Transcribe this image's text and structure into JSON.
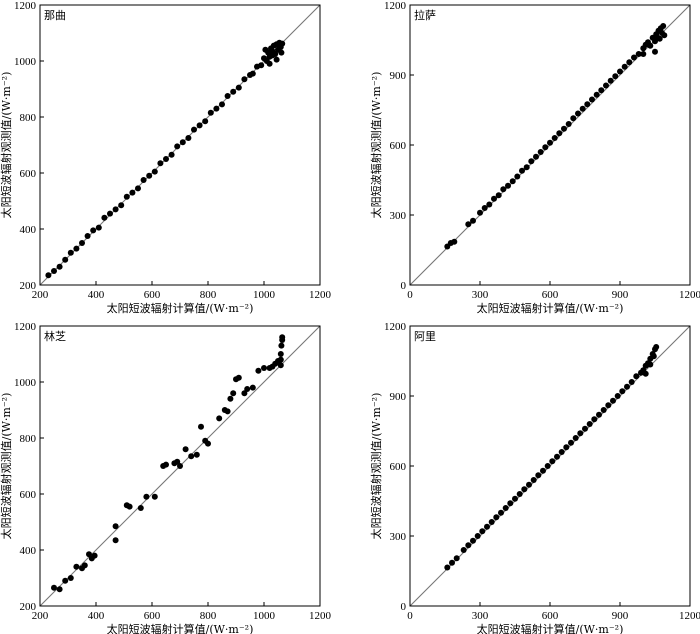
{
  "chart_data": [
    {
      "type": "scatter",
      "title": "那曲",
      "xlabel": "太阳短波辐射计算值/(W·m⁻²)",
      "ylabel": "太阳短波辐射观测值/(W·m⁻²)",
      "xlim": [
        200,
        1200
      ],
      "ylim": [
        200,
        1200
      ],
      "xticks": [
        200,
        400,
        600,
        800,
        1000,
        1200
      ],
      "yticks": [
        200,
        400,
        600,
        800,
        1000,
        1200
      ],
      "reference_line": "1:1",
      "series": [
        {
          "points": [
            [
              230,
              235
            ],
            [
              250,
              250
            ],
            [
              270,
              265
            ],
            [
              290,
              290
            ],
            [
              310,
              315
            ],
            [
              330,
              330
            ],
            [
              350,
              350
            ],
            [
              370,
              375
            ],
            [
              390,
              395
            ],
            [
              410,
              405
            ],
            [
              430,
              440
            ],
            [
              450,
              455
            ],
            [
              470,
              470
            ],
            [
              490,
              485
            ],
            [
              510,
              515
            ],
            [
              530,
              530
            ],
            [
              550,
              545
            ],
            [
              570,
              575
            ],
            [
              590,
              590
            ],
            [
              610,
              605
            ],
            [
              630,
              635
            ],
            [
              650,
              650
            ],
            [
              670,
              665
            ],
            [
              690,
              695
            ],
            [
              710,
              710
            ],
            [
              730,
              725
            ],
            [
              750,
              755
            ],
            [
              770,
              770
            ],
            [
              790,
              785
            ],
            [
              810,
              815
            ],
            [
              830,
              830
            ],
            [
              850,
              845
            ],
            [
              870,
              875
            ],
            [
              890,
              890
            ],
            [
              910,
              905
            ],
            [
              930,
              935
            ],
            [
              950,
              950
            ],
            [
              960,
              955
            ],
            [
              975,
              980
            ],
            [
              990,
              985
            ],
            [
              1000,
              1010
            ],
            [
              1010,
              1000
            ],
            [
              1015,
              1030
            ],
            [
              1020,
              1015
            ],
            [
              1025,
              1045
            ],
            [
              1030,
              1035
            ],
            [
              1035,
              1055
            ],
            [
              1040,
              1025
            ],
            [
              1045,
              1060
            ],
            [
              1050,
              1040
            ],
            [
              1055,
              1065
            ],
            [
              1060,
              1050
            ],
            [
              1062,
              1030
            ],
            [
              1065,
              1062
            ],
            [
              1045,
              1005
            ],
            [
              1030,
              1020
            ],
            [
              1020,
              990
            ],
            [
              1005,
              1040
            ]
          ]
        }
      ]
    },
    {
      "type": "scatter",
      "title": "拉萨",
      "xlabel": "太阳短波辐射计算值/(W·m⁻²)",
      "ylabel": "太阳短波辐射观测值/(W·m⁻²)",
      "xlim": [
        0,
        1200
      ],
      "ylim": [
        0,
        1200
      ],
      "xticks": [
        0,
        300,
        600,
        900,
        1200
      ],
      "yticks": [
        0,
        300,
        600,
        900,
        1200
      ],
      "reference_line": "1:1",
      "series": [
        {
          "points": [
            [
              160,
              165
            ],
            [
              175,
              180
            ],
            [
              190,
              185
            ],
            [
              250,
              260
            ],
            [
              270,
              275
            ],
            [
              300,
              310
            ],
            [
              320,
              330
            ],
            [
              340,
              345
            ],
            [
              360,
              370
            ],
            [
              380,
              385
            ],
            [
              400,
              410
            ],
            [
              420,
              425
            ],
            [
              440,
              445
            ],
            [
              460,
              465
            ],
            [
              480,
              490
            ],
            [
              500,
              505
            ],
            [
              520,
              530
            ],
            [
              540,
              550
            ],
            [
              560,
              570
            ],
            [
              580,
              590
            ],
            [
              600,
              610
            ],
            [
              620,
              630
            ],
            [
              640,
              650
            ],
            [
              660,
              670
            ],
            [
              680,
              690
            ],
            [
              700,
              715
            ],
            [
              720,
              735
            ],
            [
              740,
              755
            ],
            [
              760,
              775
            ],
            [
              780,
              795
            ],
            [
              800,
              815
            ],
            [
              820,
              835
            ],
            [
              840,
              855
            ],
            [
              860,
              875
            ],
            [
              880,
              895
            ],
            [
              900,
              915
            ],
            [
              920,
              935
            ],
            [
              940,
              955
            ],
            [
              960,
              975
            ],
            [
              980,
              990
            ],
            [
              1000,
              1015
            ],
            [
              1010,
              1030
            ],
            [
              1020,
              1040
            ],
            [
              1030,
              1025
            ],
            [
              1040,
              1060
            ],
            [
              1050,
              1045
            ],
            [
              1055,
              1075
            ],
            [
              1060,
              1060
            ],
            [
              1065,
              1090
            ],
            [
              1070,
              1055
            ],
            [
              1075,
              1100
            ],
            [
              1080,
              1080
            ],
            [
              1085,
              1110
            ],
            [
              1090,
              1070
            ],
            [
              1050,
              1000
            ],
            [
              1000,
              990
            ]
          ]
        }
      ]
    },
    {
      "type": "scatter",
      "title": "林芝",
      "xlabel": "太阳短波辐射计算值/(W·m⁻²)",
      "ylabel": "太阳短波辐射观测值/(W·m⁻²)",
      "xlim": [
        200,
        1200
      ],
      "ylim": [
        200,
        1200
      ],
      "xticks": [
        200,
        400,
        600,
        800,
        1000,
        1200
      ],
      "yticks": [
        200,
        400,
        600,
        800,
        1000,
        1200
      ],
      "reference_line": "1:1",
      "series": [
        {
          "points": [
            [
              250,
              265
            ],
            [
              270,
              260
            ],
            [
              290,
              290
            ],
            [
              310,
              300
            ],
            [
              330,
              340
            ],
            [
              350,
              335
            ],
            [
              360,
              345
            ],
            [
              375,
              385
            ],
            [
              385,
              370
            ],
            [
              395,
              380
            ],
            [
              470,
              485
            ],
            [
              470,
              435
            ],
            [
              510,
              560
            ],
            [
              520,
              555
            ],
            [
              560,
              550
            ],
            [
              580,
              590
            ],
            [
              610,
              590
            ],
            [
              640,
              700
            ],
            [
              650,
              705
            ],
            [
              680,
              710
            ],
            [
              690,
              715
            ],
            [
              700,
              700
            ],
            [
              720,
              760
            ],
            [
              740,
              735
            ],
            [
              760,
              740
            ],
            [
              775,
              840
            ],
            [
              790,
              790
            ],
            [
              800,
              780
            ],
            [
              840,
              870
            ],
            [
              860,
              900
            ],
            [
              870,
              895
            ],
            [
              880,
              940
            ],
            [
              890,
              960
            ],
            [
              900,
              1010
            ],
            [
              910,
              1015
            ],
            [
              930,
              960
            ],
            [
              940,
              975
            ],
            [
              960,
              980
            ],
            [
              980,
              1040
            ],
            [
              1000,
              1050
            ],
            [
              1020,
              1050
            ],
            [
              1030,
              1055
            ],
            [
              1040,
              1065
            ],
            [
              1050,
              1075
            ],
            [
              1060,
              1100
            ],
            [
              1060,
              1080
            ],
            [
              1060,
              1060
            ],
            [
              1062,
              1130
            ],
            [
              1065,
              1150
            ],
            [
              1065,
              1160
            ]
          ]
        }
      ]
    },
    {
      "type": "scatter",
      "title": "阿里",
      "xlabel": "太阳短波辐射计算值/(W·m⁻²)",
      "ylabel": "太阳短波辐射观测值/(W·m⁻²)",
      "xlim": [
        0,
        1200
      ],
      "ylim": [
        0,
        1200
      ],
      "xticks": [
        0,
        300,
        600,
        900,
        1200
      ],
      "yticks": [
        0,
        300,
        600,
        900,
        1200
      ],
      "reference_line": "1:1",
      "series": [
        {
          "points": [
            [
              160,
              165
            ],
            [
              180,
              185
            ],
            [
              200,
              205
            ],
            [
              230,
              240
            ],
            [
              250,
              260
            ],
            [
              270,
              280
            ],
            [
              290,
              300
            ],
            [
              310,
              320
            ],
            [
              330,
              340
            ],
            [
              350,
              360
            ],
            [
              370,
              380
            ],
            [
              390,
              400
            ],
            [
              410,
              420
            ],
            [
              430,
              440
            ],
            [
              450,
              460
            ],
            [
              470,
              480
            ],
            [
              490,
              500
            ],
            [
              510,
              520
            ],
            [
              530,
              540
            ],
            [
              550,
              560
            ],
            [
              570,
              580
            ],
            [
              590,
              600
            ],
            [
              610,
              620
            ],
            [
              630,
              640
            ],
            [
              650,
              660
            ],
            [
              670,
              680
            ],
            [
              690,
              700
            ],
            [
              710,
              720
            ],
            [
              730,
              740
            ],
            [
              750,
              760
            ],
            [
              770,
              780
            ],
            [
              790,
              800
            ],
            [
              810,
              820
            ],
            [
              830,
              840
            ],
            [
              850,
              860
            ],
            [
              870,
              880
            ],
            [
              890,
              900
            ],
            [
              910,
              920
            ],
            [
              930,
              940
            ],
            [
              950,
              960
            ],
            [
              970,
              985
            ],
            [
              990,
              1000
            ],
            [
              1000,
              1010
            ],
            [
              1010,
              1030
            ],
            [
              1020,
              1040
            ],
            [
              1030,
              1060
            ],
            [
              1040,
              1080
            ],
            [
              1050,
              1100
            ],
            [
              1055,
              1110
            ],
            [
              1045,
              1070
            ],
            [
              1030,
              1035
            ],
            [
              1010,
              995
            ]
          ]
        }
      ]
    }
  ]
}
